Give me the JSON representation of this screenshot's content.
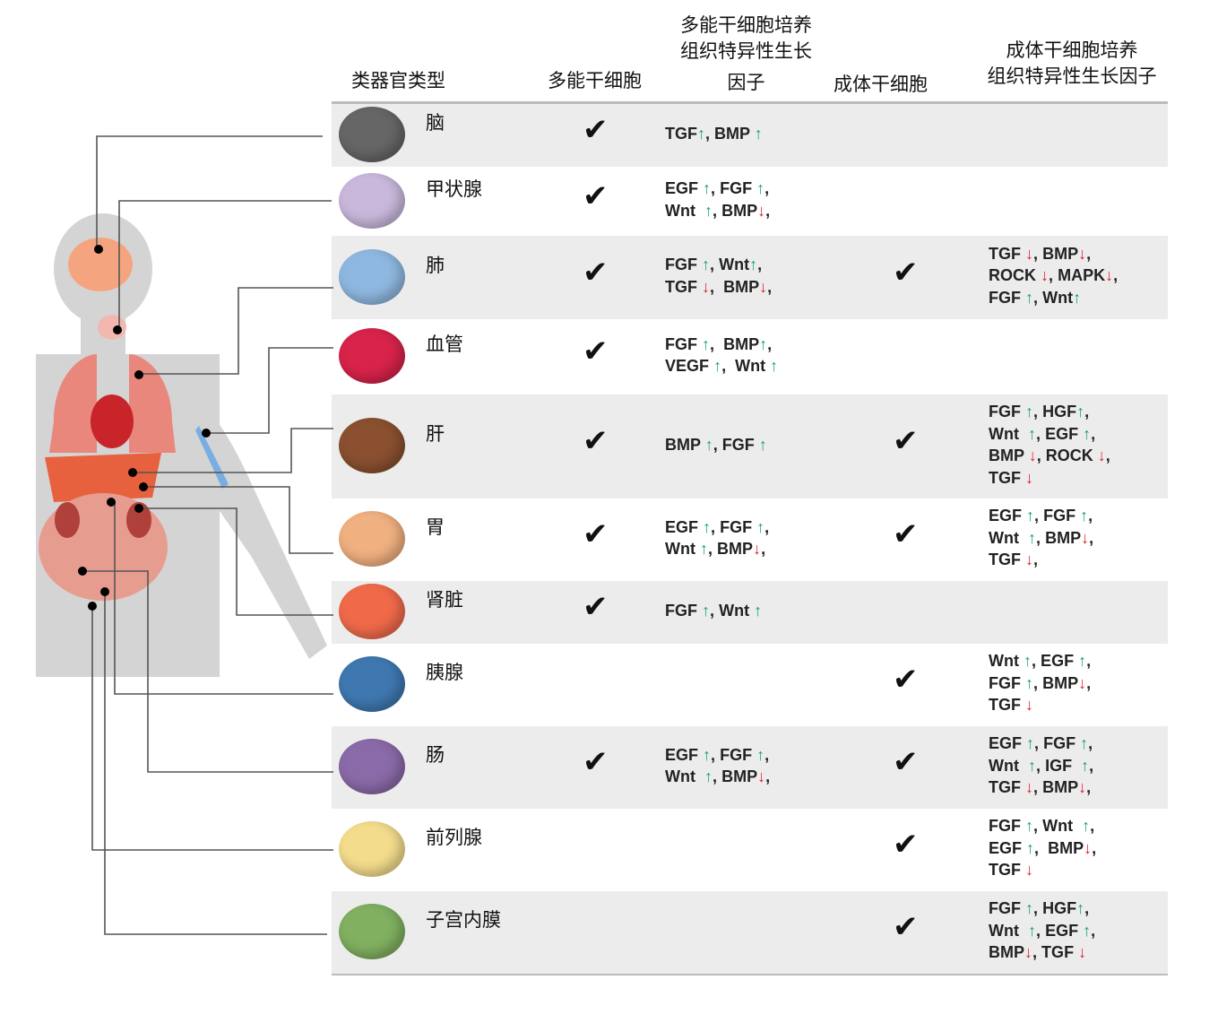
{
  "headers": {
    "organoid_type": "类器官类型",
    "psc": "多能干细胞",
    "psc_factors": [
      "多能干细胞培养",
      "组织特异性生长",
      "因子"
    ],
    "asc": "成体干细胞",
    "asc_factors": [
      "成体干细胞培养",
      "组织特异性生长因子"
    ]
  },
  "colors": {
    "up_arrow": "#1aa36b",
    "down_arrow": "#e0202a",
    "row_stripe": "#ececec"
  },
  "check_mark": "✔",
  "rows": [
    {
      "name": "脑",
      "icon": "brain-organoid",
      "color": "#666666",
      "psc": true,
      "psc_factors": [
        "TGF↑, BMP ↑"
      ],
      "asc": false,
      "asc_factors": []
    },
    {
      "name": "甲状腺",
      "icon": "thyroid-organoid",
      "color": "#c9b8dc",
      "psc": true,
      "psc_factors": [
        "EGF ↑, FGF ↑,",
        "Wnt  ↑, BMP↓,"
      ],
      "asc": false,
      "asc_factors": []
    },
    {
      "name": "肺",
      "icon": "lung-organoid",
      "color": "#8fb8e0",
      "psc": true,
      "psc_factors": [
        "FGF ↑, Wnt↑,",
        "TGF ↓,  BMP↓,"
      ],
      "asc": true,
      "asc_factors": [
        "TGF ↓, BMP↓,",
        "ROCK ↓, MAPK↓,",
        "FGF ↑, Wnt↑"
      ]
    },
    {
      "name": "血管",
      "icon": "vessel-organoid",
      "color": "#d8234a",
      "psc": true,
      "psc_factors": [
        "FGF ↑,  BMP↑,",
        "VEGF ↑,  Wnt ↑"
      ],
      "asc": false,
      "asc_factors": []
    },
    {
      "name": "肝",
      "icon": "liver-organoid",
      "color": "#8a5030",
      "psc": true,
      "psc_factors": [
        "BMP ↑, FGF ↑"
      ],
      "asc": true,
      "asc_factors": [
        "FGF ↑, HGF↑,",
        "Wnt  ↑, EGF ↑,",
        "BMP ↓, ROCK ↓,",
        "TGF ↓"
      ]
    },
    {
      "name": "胃",
      "icon": "stomach-organoid",
      "color": "#f0b080",
      "psc": true,
      "psc_factors": [
        "EGF ↑, FGF ↑,",
        "Wnt ↑, BMP↓,"
      ],
      "asc": true,
      "asc_factors": [
        "EGF ↑, FGF ↑,",
        "Wnt  ↑, BMP↓,",
        "TGF ↓,"
      ]
    },
    {
      "name": "肾脏",
      "icon": "kidney-organoid",
      "color": "#f06a4a",
      "psc": true,
      "psc_factors": [
        "FGF ↑, Wnt ↑"
      ],
      "asc": false,
      "asc_factors": []
    },
    {
      "name": "胰腺",
      "icon": "pancreas-organoid",
      "color": "#3f78b0",
      "psc": false,
      "psc_factors": [],
      "asc": true,
      "asc_factors": [
        "Wnt ↑, EGF ↑,",
        "FGF ↑, BMP↓,",
        "TGF ↓"
      ]
    },
    {
      "name": "肠",
      "icon": "intestine-organoid",
      "color": "#8a6aa8",
      "psc": true,
      "psc_factors": [
        "EGF ↑, FGF ↑,",
        "Wnt  ↑, BMP↓,"
      ],
      "asc": true,
      "asc_factors": [
        "EGF ↑, FGF ↑,",
        "Wnt  ↑, IGF  ↑,",
        "TGF ↓, BMP↓,"
      ]
    },
    {
      "name": "前列腺",
      "icon": "prostate-organoid",
      "color": "#f3dc8c",
      "psc": false,
      "psc_factors": [],
      "asc": true,
      "asc_factors": [
        "FGF ↑, Wnt  ↑,",
        "EGF ↑,  BMP↓,",
        "TGF ↓"
      ]
    },
    {
      "name": "子宫内膜",
      "icon": "endometrium-organoid",
      "color": "#80b060",
      "psc": false,
      "psc_factors": [],
      "asc": true,
      "asc_factors": [
        "FGF ↑, HGF↑,",
        "Wnt  ↑, EGF ↑,",
        "BMP↓, TGF ↓"
      ]
    }
  ]
}
